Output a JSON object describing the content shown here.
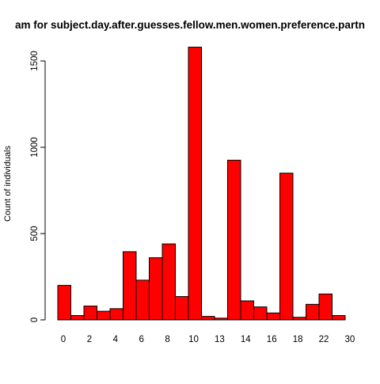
{
  "chart_data": {
    "type": "bar",
    "title": "am for subject.day.after.guesses.fellow.men.women.preference.partn",
    "xlabel": "",
    "ylabel": "Count of individuals",
    "ylim": [
      0,
      1600
    ],
    "y_ticks": [
      "0",
      "500",
      "1000",
      "1500"
    ],
    "x_ticks": [
      "0",
      "2",
      "4",
      "6",
      "8",
      "10",
      "13",
      "14",
      "16",
      "18",
      "22",
      "30"
    ],
    "grid": false,
    "bar_color": "#ff0000",
    "bar_edge_color": "#000000",
    "values": [
      200,
      25,
      80,
      50,
      65,
      395,
      230,
      360,
      440,
      135,
      1580,
      20,
      10,
      925,
      110,
      75,
      40,
      850,
      15,
      90,
      150,
      25
    ]
  }
}
